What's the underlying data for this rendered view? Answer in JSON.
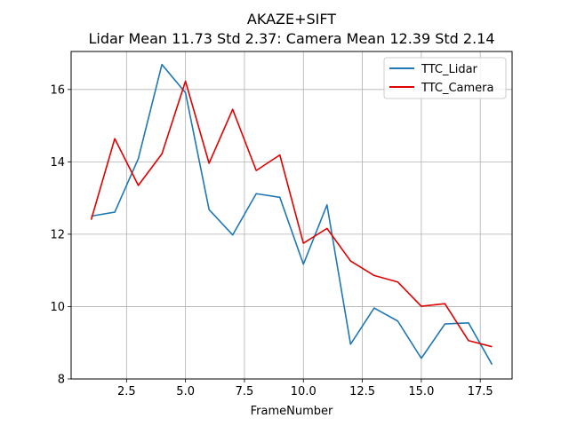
{
  "chart_data": {
    "type": "line",
    "title": "AKAZE+SIFT",
    "subtitle": "Lidar Mean 11.73 Std 2.37: Camera Mean 12.39 Std 2.14",
    "xlabel": "FrameNumber",
    "ylabel": "",
    "xlim": [
      0.15,
      18.85
    ],
    "ylim": [
      8,
      17.05
    ],
    "xticks": [
      2.5,
      5.0,
      7.5,
      10.0,
      12.5,
      15.0,
      17.5
    ],
    "xtick_labels": [
      "2.5",
      "5.0",
      "7.5",
      "10.0",
      "12.5",
      "15.0",
      "17.5"
    ],
    "yticks": [
      8,
      10,
      12,
      14,
      16
    ],
    "ytick_labels": [
      "8",
      "10",
      "12",
      "14",
      "16"
    ],
    "grid": true,
    "legend_position": "top-right",
    "x": [
      1,
      2,
      3,
      4,
      5,
      6,
      7,
      8,
      9,
      10,
      11,
      12,
      13,
      14,
      15,
      16,
      17,
      18
    ],
    "series": [
      {
        "name": "TTC_Lidar",
        "color": "#1f77b4",
        "values": [
          12.5,
          12.61,
          14.09,
          16.69,
          15.91,
          12.68,
          11.98,
          13.12,
          13.02,
          11.17,
          12.81,
          8.96,
          9.96,
          9.6,
          8.57,
          9.52,
          9.55,
          8.4
        ]
      },
      {
        "name": "TTC_Camera",
        "color": "#e00000",
        "values": [
          12.4,
          14.64,
          13.35,
          14.22,
          16.23,
          13.96,
          15.45,
          13.76,
          14.19,
          11.75,
          12.16,
          11.26,
          10.86,
          10.68,
          10.01,
          10.08,
          9.06,
          8.89
        ]
      }
    ]
  }
}
